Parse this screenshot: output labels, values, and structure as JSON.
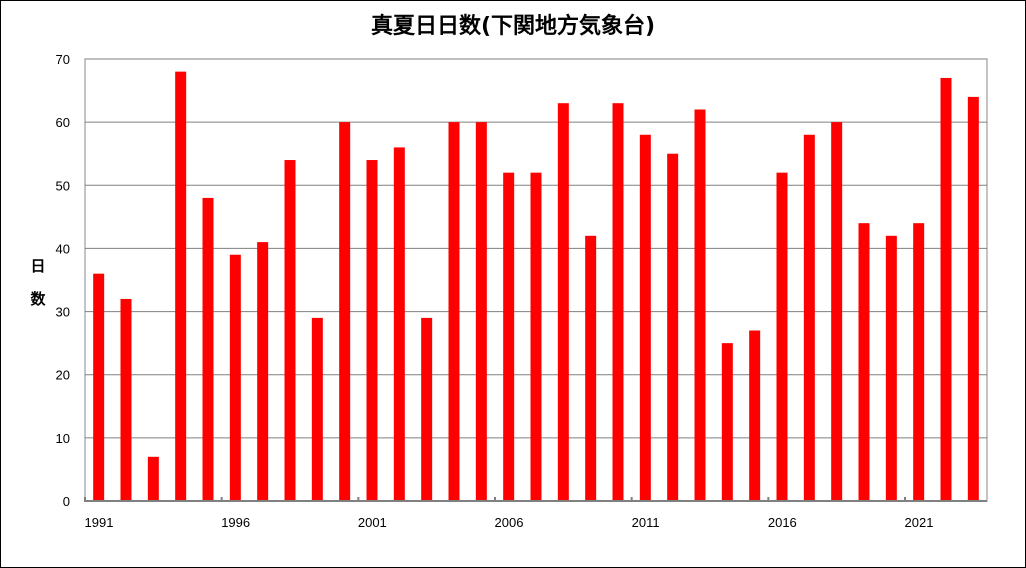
{
  "chart_data": {
    "type": "bar",
    "title": "真夏日日数(下関地方気象台)",
    "xlabel": "",
    "ylabel": "日\n数",
    "ylim": [
      0,
      70
    ],
    "yticks": [
      0,
      10,
      20,
      30,
      40,
      50,
      60,
      70
    ],
    "grid": true,
    "legend": "none",
    "bar_color": "#ff0000",
    "categories": [
      "1991",
      "1992",
      "1993",
      "1994",
      "1995",
      "1996",
      "1997",
      "1998",
      "1999",
      "2000",
      "2001",
      "2002",
      "2003",
      "2004",
      "2005",
      "2006",
      "2007",
      "2008",
      "2009",
      "2010",
      "2011",
      "2012",
      "2013",
      "2014",
      "2015",
      "2016",
      "2017",
      "2018",
      "2019",
      "2020",
      "2021",
      "2022",
      "2023"
    ],
    "xtick_labels": [
      "1991",
      "1996",
      "2001",
      "2006",
      "2011",
      "2016",
      "2021"
    ],
    "values": [
      36,
      32,
      7,
      68,
      48,
      39,
      41,
      54,
      29,
      60,
      54,
      56,
      29,
      60,
      60,
      52,
      52,
      63,
      42,
      63,
      58,
      55,
      62,
      25,
      27,
      52,
      58,
      60,
      44,
      42,
      44,
      67,
      64
    ]
  }
}
